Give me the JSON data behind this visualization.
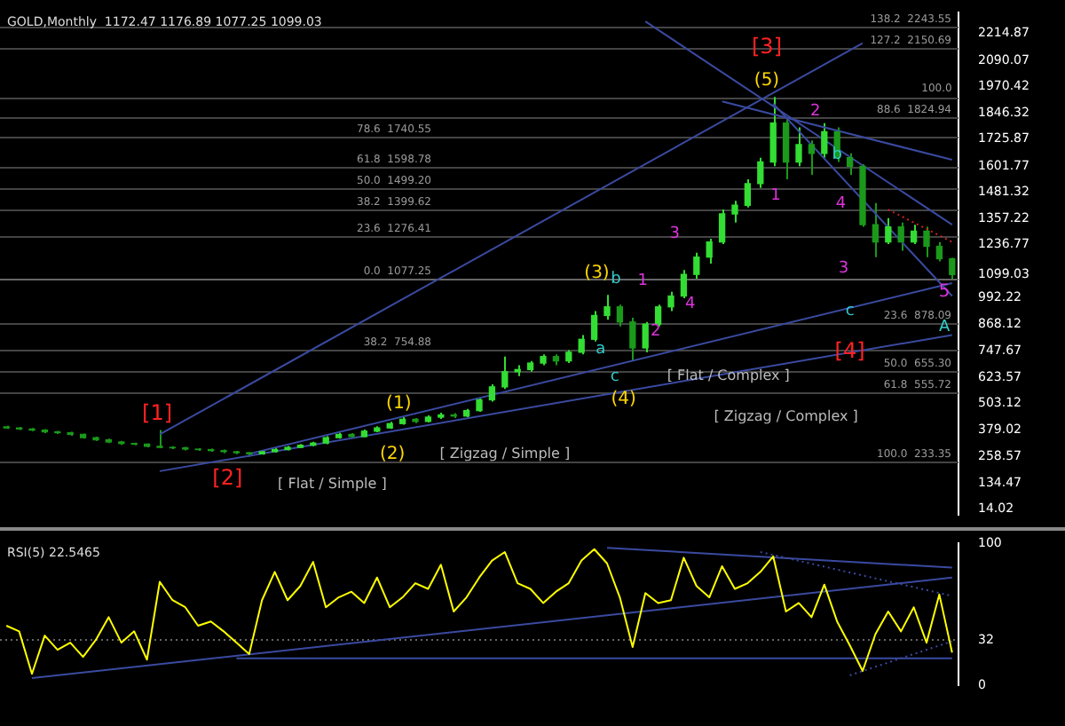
{
  "chart_data": [
    {
      "type": "candlestick",
      "title": "GOLD,Monthly  1172.47 1176.89 1077.25 1099.03",
      "marker": "none",
      "tick_labels": "y",
      "colors": [
        "#1a991a",
        "#1a991a",
        "#1a991a",
        "#1a991a",
        "#1a991a",
        "#1a991a",
        "#1a991a",
        "#1a991a",
        "#1a991a",
        "#1a991a",
        "#1a991a",
        "#1a991a",
        "#1a991a",
        "#1a991a",
        "#1a991a",
        "#1a991a",
        "#1a991a",
        "#1a991a",
        "#1a991a",
        "#1a991a",
        "#33dd33",
        "#33dd33",
        "#33dd33",
        "#33dd33",
        "#33dd33",
        "#33dd33",
        "#33dd33",
        "#1a991a",
        "#33dd33",
        "#33dd33",
        "#33dd33",
        "#33dd33",
        "#1a991a",
        "#33dd33",
        "#33dd33",
        "#1a991a",
        "#33dd33",
        "#33dd33",
        "#33dd33",
        "#33dd33",
        "#33dd33",
        "#33dd33",
        "#33dd33",
        "#1a991a",
        "#33dd33",
        "#33dd33",
        "#33dd33",
        "#33dd33",
        "#1a991a",
        "#1a991a",
        "#33dd33",
        "#33dd33",
        "#33dd33",
        "#33dd33",
        "#33dd33",
        "#33dd33",
        "#33dd33",
        "#33dd33",
        "#33dd33",
        "#33dd33",
        "#33dd33",
        "#1a991a",
        "#33dd33",
        "#1a991a",
        "#33dd33",
        "#1a991a",
        "#1a991a",
        "#1a991a",
        "#1a991a",
        "#33dd33",
        "#1a991a",
        "#33dd33",
        "#1a991a",
        "#1a991a",
        "#1a991a"
      ],
      "categories": [
        null,
        null,
        null,
        null,
        null,
        null,
        null,
        null,
        null,
        null,
        null,
        null,
        null,
        null,
        null,
        null,
        null,
        null,
        null,
        null,
        null,
        null,
        null,
        null,
        null,
        null,
        null,
        null,
        null,
        null,
        null,
        null,
        null,
        null,
        null,
        null,
        null,
        null,
        null,
        null,
        null,
        null,
        null,
        null,
        null,
        null,
        null,
        null,
        null,
        null,
        null,
        null,
        null,
        null,
        null,
        null,
        null,
        null,
        null,
        null,
        null,
        null,
        null,
        null,
        null,
        null,
        null,
        null,
        null,
        null,
        null,
        null,
        null,
        null,
        null
      ],
      "ohlc": [
        [
          395,
          400,
          385,
          390
        ],
        [
          390,
          394,
          380,
          385
        ],
        [
          385,
          390,
          375,
          380
        ],
        [
          380,
          384,
          366,
          372
        ],
        [
          372,
          376,
          362,
          368
        ],
        [
          368,
          372,
          354,
          360
        ],
        [
          360,
          364,
          340,
          345
        ],
        [
          345,
          350,
          330,
          335
        ],
        [
          335,
          340,
          320,
          325
        ],
        [
          325,
          330,
          312,
          318
        ],
        [
          318,
          322,
          310,
          315
        ],
        [
          315,
          318,
          300,
          305
        ],
        [
          305,
          380,
          296,
          300
        ],
        [
          300,
          305,
          292,
          298
        ],
        [
          298,
          302,
          286,
          292
        ],
        [
          292,
          296,
          284,
          290
        ],
        [
          290,
          294,
          280,
          285
        ],
        [
          285,
          290,
          274,
          280
        ],
        [
          280,
          284,
          268,
          275
        ],
        [
          275,
          278,
          256,
          270
        ],
        [
          270,
          286,
          266,
          280
        ],
        [
          280,
          296,
          276,
          290
        ],
        [
          290,
          306,
          286,
          300
        ],
        [
          300,
          316,
          296,
          310
        ],
        [
          310,
          326,
          305,
          320
        ],
        [
          320,
          352,
          315,
          345
        ],
        [
          345,
          368,
          340,
          360
        ],
        [
          360,
          366,
          342,
          350
        ],
        [
          350,
          382,
          346,
          375
        ],
        [
          375,
          398,
          370,
          390
        ],
        [
          390,
          418,
          385,
          410
        ],
        [
          410,
          440,
          405,
          430
        ],
        [
          430,
          436,
          412,
          420
        ],
        [
          420,
          448,
          415,
          440
        ],
        [
          440,
          460,
          432,
          450
        ],
        [
          450,
          458,
          436,
          445
        ],
        [
          445,
          478,
          440,
          470
        ],
        [
          470,
          530,
          465,
          520
        ],
        [
          520,
          592,
          512,
          580
        ],
        [
          580,
          720,
          570,
          650
        ],
        [
          650,
          680,
          630,
          660
        ],
        [
          660,
          700,
          650,
          690
        ],
        [
          690,
          730,
          680,
          720
        ],
        [
          720,
          730,
          680,
          700
        ],
        [
          700,
          750,
          690,
          740
        ],
        [
          740,
          820,
          730,
          800
        ],
        [
          800,
          930,
          790,
          910
        ],
        [
          910,
          1005,
          890,
          950
        ],
        [
          950,
          960,
          860,
          880
        ],
        [
          880,
          900,
          700,
          760
        ],
        [
          760,
          880,
          740,
          870
        ],
        [
          870,
          960,
          860,
          950
        ],
        [
          950,
          1020,
          930,
          1000
        ],
        [
          1000,
          1120,
          990,
          1100
        ],
        [
          1100,
          1200,
          1080,
          1180
        ],
        [
          1180,
          1265,
          1150,
          1250
        ],
        [
          1250,
          1400,
          1240,
          1380
        ],
        [
          1380,
          1440,
          1340,
          1420
        ],
        [
          1420,
          1540,
          1410,
          1520
        ],
        [
          1520,
          1640,
          1500,
          1620
        ],
        [
          1620,
          1921.15,
          1600,
          1800
        ],
        [
          1800,
          1820,
          1540,
          1620
        ],
        [
          1620,
          1780,
          1600,
          1700
        ],
        [
          1700,
          1720,
          1560,
          1660
        ],
        [
          1660,
          1800,
          1640,
          1760
        ],
        [
          1760,
          1780,
          1620,
          1640
        ],
        [
          1640,
          1660,
          1560,
          1600
        ],
        [
          1600,
          1610,
          1320,
          1330
        ],
        [
          1330,
          1430,
          1180,
          1250
        ],
        [
          1250,
          1360,
          1240,
          1320
        ],
        [
          1320,
          1340,
          1210,
          1250
        ],
        [
          1250,
          1330,
          1240,
          1300
        ],
        [
          1300,
          1320,
          1180,
          1230
        ],
        [
          1230,
          1250,
          1160,
          1172.47
        ],
        [
          1172.47,
          1176.89,
          1077.25,
          1099.03
        ]
      ],
      "series": [
        {
          "type": "line",
          "color": "#3a4aa0",
          "values": [
            null,
            null,
            null,
            null,
            null,
            null,
            null,
            null,
            null,
            null,
            null,
            null,
            190,
            null,
            null,
            null,
            null,
            null,
            null,
            null,
            null,
            null,
            null,
            null,
            null,
            null,
            null,
            null,
            null,
            null,
            null,
            null,
            null,
            null,
            null,
            null,
            null,
            null,
            null,
            null,
            null,
            null,
            null,
            null,
            null,
            null,
            null,
            null,
            null,
            null,
            null,
            null,
            null,
            null,
            null,
            null,
            null,
            null,
            null,
            null,
            null,
            null,
            null,
            null,
            null,
            null,
            null,
            null,
            null,
            null,
            null,
            null,
            null,
            null,
            820
          ]
        },
        {
          "type": "line",
          "color": "#3a4aa0",
          "values": [
            null,
            null,
            null,
            null,
            null,
            null,
            null,
            null,
            null,
            null,
            null,
            null,
            null,
            null,
            null,
            null,
            null,
            null,
            null,
            270,
            null,
            null,
            null,
            null,
            null,
            null,
            null,
            null,
            null,
            null,
            null,
            null,
            null,
            null,
            null,
            null,
            null,
            null,
            null,
            null,
            null,
            null,
            null,
            null,
            null,
            null,
            null,
            null,
            null,
            null,
            null,
            null,
            null,
            null,
            null,
            null,
            null,
            null,
            null,
            null,
            null,
            null,
            null,
            null,
            null,
            null,
            null,
            null,
            null,
            null,
            null,
            null,
            null,
            null,
            1060
          ]
        },
        {
          "type": "line",
          "color": "#3a4aa0",
          "values": [
            null,
            null,
            null,
            null,
            null,
            null,
            null,
            null,
            null,
            null,
            null,
            null,
            360,
            null,
            null,
            null,
            null,
            null,
            null,
            null,
            null,
            null,
            null,
            null,
            null,
            null,
            null,
            null,
            null,
            null,
            null,
            null,
            null,
            null,
            null,
            null,
            null,
            null,
            null,
            null,
            null,
            null,
            null,
            null,
            null,
            null,
            null,
            null,
            null,
            null,
            null,
            null,
            null,
            null,
            null,
            null,
            null,
            null,
            null,
            null,
            null,
            null,
            null,
            null,
            null,
            null,
            null,
            2170,
            null,
            null,
            null,
            null,
            null,
            null,
            null
          ]
        },
        {
          "type": "line",
          "color": "#3a4aa0",
          "values": [
            null,
            null,
            null,
            null,
            null,
            null,
            null,
            null,
            null,
            null,
            null,
            null,
            null,
            null,
            null,
            null,
            null,
            null,
            null,
            null,
            null,
            null,
            null,
            null,
            null,
            null,
            null,
            null,
            null,
            null,
            null,
            null,
            null,
            null,
            null,
            null,
            null,
            null,
            null,
            null,
            null,
            null,
            null,
            null,
            null,
            null,
            null,
            null,
            null,
            null,
            2270,
            null,
            null,
            null,
            null,
            null,
            null,
            null,
            null,
            null,
            null,
            null,
            null,
            null,
            null,
            null,
            null,
            null,
            null,
            null,
            null,
            null,
            null,
            null,
            1330
          ]
        },
        {
          "type": "line",
          "color": "#3a4aa0",
          "values": [
            null,
            null,
            null,
            null,
            null,
            null,
            null,
            null,
            null,
            null,
            null,
            null,
            null,
            null,
            null,
            null,
            null,
            null,
            null,
            null,
            null,
            null,
            null,
            null,
            null,
            null,
            null,
            null,
            null,
            null,
            null,
            null,
            null,
            null,
            null,
            null,
            null,
            null,
            null,
            null,
            null,
            null,
            null,
            null,
            null,
            null,
            null,
            null,
            null,
            null,
            null,
            null,
            null,
            null,
            null,
            null,
            1900,
            null,
            null,
            null,
            null,
            null,
            null,
            null,
            null,
            null,
            null,
            null,
            null,
            null,
            null,
            null,
            null,
            null,
            1630
          ]
        },
        {
          "type": "line",
          "color": "#3a4aa0",
          "values": [
            null,
            null,
            null,
            null,
            null,
            null,
            null,
            null,
            null,
            null,
            null,
            null,
            null,
            null,
            null,
            null,
            null,
            null,
            null,
            null,
            null,
            null,
            null,
            null,
            null,
            null,
            null,
            null,
            null,
            null,
            null,
            null,
            null,
            null,
            null,
            null,
            null,
            null,
            null,
            null,
            null,
            null,
            null,
            null,
            null,
            null,
            null,
            null,
            null,
            null,
            null,
            null,
            null,
            null,
            null,
            null,
            null,
            null,
            null,
            null,
            1890,
            null,
            null,
            null,
            null,
            null,
            null,
            null,
            null,
            null,
            null,
            null,
            null,
            null,
            1000
          ]
        },
        {
          "type": "line",
          "color": "#cc2222",
          "line_style": "dotted",
          "values": [
            null,
            null,
            null,
            null,
            null,
            null,
            null,
            null,
            null,
            null,
            null,
            null,
            null,
            null,
            null,
            null,
            null,
            null,
            null,
            null,
            null,
            null,
            null,
            null,
            null,
            null,
            null,
            null,
            null,
            null,
            null,
            null,
            null,
            null,
            null,
            null,
            null,
            null,
            null,
            null,
            null,
            null,
            null,
            null,
            null,
            null,
            null,
            null,
            null,
            null,
            null,
            null,
            null,
            null,
            null,
            null,
            null,
            null,
            null,
            null,
            null,
            null,
            null,
            null,
            null,
            null,
            null,
            null,
            null,
            1400,
            null,
            null,
            null,
            null,
            1250
          ]
        }
      ],
      "ylim": [
        -10,
        2310
      ],
      "yticks": [
        14.02,
        134.47,
        258.57,
        379.02,
        503.12,
        623.57,
        747.67,
        868.12,
        992.22,
        1099.03,
        1236.77,
        1357.22,
        1481.32,
        1601.77,
        1725.87,
        1846.32,
        1970.42,
        2090.07,
        2214.87
      ],
      "ref_lines": [
        {
          "axis": "y",
          "value": 2243.55,
          "label": "138.2  2243.55",
          "color": "#444444"
        },
        {
          "axis": "y",
          "value": 2150.69,
          "label": "127.2  2150.69",
          "color": "#444444"
        },
        {
          "axis": "y",
          "value": 1921.15,
          "color": "#444444"
        },
        {
          "axis": "y",
          "value": 1824.94,
          "label": "88.6  1824.94",
          "color": "#444444"
        },
        {
          "axis": "y",
          "value": 1740.55,
          "label": "78.6  1740.55",
          "color": "#444444"
        },
        {
          "axis": "y",
          "value": 1598.78,
          "label": "61.8  1598.78",
          "color": "#444444"
        },
        {
          "axis": "y",
          "value": 1499.2,
          "label": "50.0  1499.20",
          "color": "#444444"
        },
        {
          "axis": "y",
          "value": 1399.62,
          "label": "38.2  1399.62",
          "color": "#444444"
        },
        {
          "axis": "y",
          "value": 1276.41,
          "label": "23.6  1276.41",
          "color": "#444444"
        },
        {
          "axis": "y",
          "value": 1077.25,
          "label": "0.0  1077.25",
          "color": "#666666"
        },
        {
          "axis": "y",
          "value": 878.09,
          "label": "23.6  878.09",
          "color": "#444444"
        },
        {
          "axis": "y",
          "value": 754.88,
          "label": "38.2  754.88",
          "color": "#444444"
        },
        {
          "axis": "y",
          "value": 655.3,
          "label": "50.0  655.30",
          "color": "#444444"
        },
        {
          "axis": "y",
          "value": 555.72,
          "label": "61.8  555.72",
          "color": "#444444"
        },
        {
          "axis": "y",
          "value": 233.35,
          "label": "100.0  233.35",
          "color": "#444444"
        }
      ],
      "annotations": [
        "[1]",
        "[2]",
        "[ Flat / Simple ]",
        "(1)",
        "(2)",
        "[ Zigzag / Simple ]",
        "(3)",
        "a",
        "b",
        "c",
        "(4)",
        "[ Flat / Complex ]",
        "1",
        "2",
        "3",
        "4",
        "[3]",
        "(5)",
        "1",
        "2",
        "3",
        "4",
        "5",
        "A",
        "b",
        "c",
        "[4]",
        "[ Zigzag / Complex ]",
        "100.0"
      ]
    },
    {
      "type": "line",
      "title": "RSI(5) 22.5465",
      "marker": "none",
      "tick_labels": "y",
      "categories": [
        null,
        null,
        null,
        null,
        null,
        null,
        null,
        null,
        null,
        null,
        null,
        null,
        null,
        null,
        null,
        null,
        null,
        null,
        null,
        null,
        null,
        null,
        null,
        null,
        null,
        null,
        null,
        null,
        null,
        null,
        null,
        null,
        null,
        null,
        null,
        null,
        null,
        null,
        null,
        null,
        null,
        null,
        null,
        null,
        null,
        null,
        null,
        null,
        null,
        null,
        null,
        null,
        null,
        null,
        null,
        null,
        null,
        null,
        null,
        null,
        null,
        null,
        null,
        null,
        null,
        null,
        null,
        null,
        null,
        null,
        null,
        null,
        null,
        null,
        null
      ],
      "series": [
        {
          "color": "#ffff00",
          "values": [
            42,
            38,
            8,
            35,
            25,
            30,
            20,
            32,
            48,
            30,
            38,
            18,
            73,
            60,
            55,
            42,
            45,
            38,
            30,
            22,
            60,
            80,
            60,
            70,
            87,
            55,
            62,
            66,
            58,
            76,
            55,
            62,
            72,
            68,
            85,
            52,
            62,
            76,
            88,
            94,
            72,
            68,
            58,
            66,
            72,
            88,
            96,
            86,
            62,
            27,
            65,
            58,
            60,
            90,
            70,
            62,
            84,
            68,
            72,
            80,
            91,
            52,
            58,
            48,
            71,
            45,
            28,
            10,
            36,
            52,
            38,
            55,
            30,
            64,
            23
          ]
        },
        {
          "color": "#3a4aa0",
          "values": [
            null,
            null,
            5,
            null,
            null,
            null,
            null,
            null,
            null,
            null,
            null,
            null,
            null,
            null,
            null,
            null,
            null,
            null,
            null,
            null,
            null,
            null,
            null,
            null,
            null,
            null,
            null,
            null,
            null,
            null,
            null,
            null,
            null,
            null,
            null,
            null,
            null,
            null,
            null,
            null,
            null,
            null,
            null,
            null,
            null,
            null,
            null,
            null,
            null,
            null,
            null,
            null,
            null,
            null,
            null,
            null,
            null,
            null,
            null,
            null,
            null,
            null,
            null,
            null,
            null,
            null,
            null,
            null,
            null,
            null,
            null,
            null,
            null,
            null,
            76
          ]
        },
        {
          "color": "#3a4aa0",
          "values": [
            null,
            null,
            null,
            null,
            null,
            null,
            null,
            null,
            null,
            null,
            null,
            null,
            null,
            null,
            null,
            null,
            null,
            null,
            19,
            null,
            null,
            null,
            null,
            null,
            null,
            null,
            null,
            null,
            null,
            null,
            null,
            null,
            null,
            null,
            null,
            null,
            null,
            null,
            null,
            null,
            null,
            null,
            null,
            null,
            null,
            null,
            null,
            null,
            null,
            null,
            null,
            null,
            null,
            null,
            null,
            null,
            null,
            null,
            null,
            null,
            null,
            null,
            null,
            null,
            null,
            null,
            null,
            null,
            null,
            null,
            null,
            null,
            null,
            null,
            19
          ]
        },
        {
          "color": "#3a4aa0",
          "values": [
            null,
            null,
            null,
            null,
            null,
            null,
            null,
            null,
            null,
            null,
            null,
            null,
            null,
            null,
            null,
            null,
            null,
            null,
            null,
            null,
            null,
            null,
            null,
            null,
            null,
            null,
            null,
            null,
            null,
            null,
            null,
            null,
            null,
            null,
            null,
            null,
            null,
            null,
            null,
            null,
            null,
            null,
            null,
            null,
            null,
            null,
            null,
            97,
            null,
            null,
            null,
            null,
            null,
            null,
            null,
            null,
            null,
            null,
            null,
            null,
            null,
            null,
            null,
            null,
            null,
            null,
            null,
            null,
            null,
            null,
            null,
            null,
            null,
            null,
            83
          ]
        },
        {
          "color": "#3a4aa0",
          "line_style": "dotted",
          "values": [
            null,
            null,
            null,
            null,
            null,
            null,
            null,
            null,
            null,
            null,
            null,
            null,
            null,
            null,
            null,
            null,
            null,
            null,
            null,
            null,
            null,
            null,
            null,
            null,
            null,
            null,
            null,
            null,
            null,
            null,
            null,
            null,
            null,
            null,
            null,
            null,
            null,
            null,
            null,
            null,
            null,
            null,
            null,
            null,
            null,
            null,
            null,
            null,
            null,
            null,
            null,
            null,
            null,
            null,
            null,
            null,
            null,
            null,
            null,
            94,
            null,
            null,
            null,
            null,
            null,
            null,
            null,
            null,
            null,
            null,
            null,
            null,
            null,
            null,
            63
          ]
        },
        {
          "color": "#3a4aa0",
          "line_style": "dotted",
          "values": [
            null,
            null,
            null,
            null,
            null,
            null,
            null,
            null,
            null,
            null,
            null,
            null,
            null,
            null,
            null,
            null,
            null,
            null,
            null,
            null,
            null,
            null,
            null,
            null,
            null,
            null,
            null,
            null,
            null,
            null,
            null,
            null,
            null,
            null,
            null,
            null,
            null,
            null,
            null,
            null,
            null,
            null,
            null,
            null,
            null,
            null,
            null,
            null,
            null,
            null,
            null,
            null,
            null,
            null,
            null,
            null,
            null,
            null,
            null,
            null,
            null,
            null,
            null,
            null,
            null,
            null,
            7,
            null,
            null,
            null,
            null,
            null,
            null,
            null,
            31
          ]
        }
      ],
      "ylim": [
        0,
        100
      ],
      "yticks": [
        0,
        32,
        100
      ],
      "ref_lines": [
        {
          "axis": "y",
          "value": 32,
          "color": "#666666",
          "line_style": "dotted"
        }
      ]
    }
  ]
}
